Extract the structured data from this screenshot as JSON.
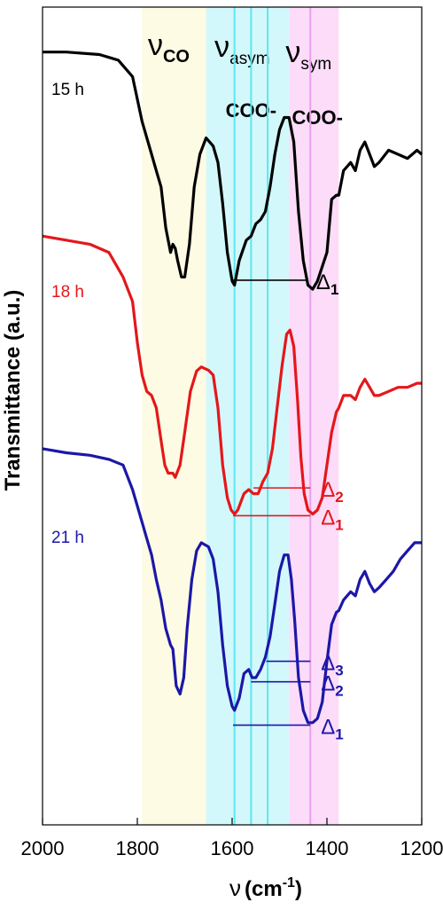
{
  "chart_data": {
    "type": "line",
    "xlabel_symbol": "ν",
    "xlabel_unit_open": "(cm",
    "xlabel_unit_exp": "-1",
    "xlabel_unit_close": ")",
    "ylabel": "Transmittance (a.u.)",
    "xlim": [
      2000,
      1200
    ],
    "x_reversed": true,
    "xticks": [
      "2000",
      "1800",
      "1600",
      "1400",
      "1200"
    ],
    "grid": false,
    "bands": [
      {
        "symbol": "ν",
        "sub": "CO",
        "second_line": "",
        "x_range": [
          1790,
          1655
        ],
        "color": "#fdfbe3"
      },
      {
        "symbol": "ν",
        "sub": "asym",
        "second_line": "COO-",
        "x_range": [
          1655,
          1480
        ],
        "color": "#d3f8fb"
      },
      {
        "symbol": "ν",
        "sub": "sym",
        "second_line": "COO-",
        "x_range": [
          1480,
          1375
        ],
        "color": "#fcdcf9"
      }
    ],
    "marker_lines": [
      {
        "x": 1595,
        "color": "#5ee6f0"
      },
      {
        "x": 1560,
        "color": "#5ee6f0"
      },
      {
        "x": 1525,
        "color": "#5ee6f0"
      },
      {
        "x": 1435,
        "color": "#e8a0ea"
      }
    ],
    "series": [
      {
        "name": "15 h",
        "color": "#000000",
        "points": [
          [
            2000,
            0.945
          ],
          [
            1950,
            0.945
          ],
          [
            1880,
            0.942
          ],
          [
            1840,
            0.935
          ],
          [
            1810,
            0.915
          ],
          [
            1790,
            0.86
          ],
          [
            1770,
            0.82
          ],
          [
            1760,
            0.8
          ],
          [
            1750,
            0.78
          ],
          [
            1740,
            0.73
          ],
          [
            1730,
            0.7
          ],
          [
            1725,
            0.71
          ],
          [
            1720,
            0.705
          ],
          [
            1715,
            0.69
          ],
          [
            1707,
            0.67
          ],
          [
            1700,
            0.67
          ],
          [
            1690,
            0.71
          ],
          [
            1680,
            0.78
          ],
          [
            1668,
            0.82
          ],
          [
            1655,
            0.84
          ],
          [
            1640,
            0.83
          ],
          [
            1630,
            0.81
          ],
          [
            1620,
            0.76
          ],
          [
            1610,
            0.7
          ],
          [
            1600,
            0.665
          ],
          [
            1595,
            0.66
          ],
          [
            1585,
            0.69
          ],
          [
            1570,
            0.715
          ],
          [
            1560,
            0.72
          ],
          [
            1550,
            0.735
          ],
          [
            1540,
            0.74
          ],
          [
            1530,
            0.75
          ],
          [
            1520,
            0.78
          ],
          [
            1510,
            0.82
          ],
          [
            1500,
            0.85
          ],
          [
            1490,
            0.865
          ],
          [
            1480,
            0.865
          ],
          [
            1470,
            0.835
          ],
          [
            1460,
            0.75
          ],
          [
            1450,
            0.69
          ],
          [
            1440,
            0.66
          ],
          [
            1430,
            0.655
          ],
          [
            1420,
            0.665
          ],
          [
            1400,
            0.7
          ],
          [
            1390,
            0.765
          ],
          [
            1380,
            0.77
          ],
          [
            1375,
            0.77
          ],
          [
            1365,
            0.8
          ],
          [
            1350,
            0.81
          ],
          [
            1340,
            0.8
          ],
          [
            1330,
            0.825
          ],
          [
            1320,
            0.835
          ],
          [
            1310,
            0.82
          ],
          [
            1300,
            0.805
          ],
          [
            1290,
            0.81
          ],
          [
            1270,
            0.825
          ],
          [
            1250,
            0.82
          ],
          [
            1230,
            0.815
          ],
          [
            1210,
            0.825
          ],
          [
            1200,
            0.82
          ]
        ]
      },
      {
        "name": "18 h",
        "color": "#e4171b",
        "points": [
          [
            2000,
            0.72
          ],
          [
            1950,
            0.715
          ],
          [
            1900,
            0.71
          ],
          [
            1860,
            0.7
          ],
          [
            1830,
            0.67
          ],
          [
            1810,
            0.64
          ],
          [
            1800,
            0.59
          ],
          [
            1790,
            0.55
          ],
          [
            1780,
            0.53
          ],
          [
            1770,
            0.525
          ],
          [
            1760,
            0.51
          ],
          [
            1750,
            0.47
          ],
          [
            1742,
            0.44
          ],
          [
            1735,
            0.43
          ],
          [
            1725,
            0.43
          ],
          [
            1720,
            0.425
          ],
          [
            1710,
            0.44
          ],
          [
            1700,
            0.48
          ],
          [
            1688,
            0.53
          ],
          [
            1675,
            0.555
          ],
          [
            1665,
            0.56
          ],
          [
            1650,
            0.556
          ],
          [
            1640,
            0.55
          ],
          [
            1630,
            0.51
          ],
          [
            1620,
            0.44
          ],
          [
            1610,
            0.4
          ],
          [
            1602,
            0.385
          ],
          [
            1595,
            0.38
          ],
          [
            1588,
            0.385
          ],
          [
            1575,
            0.405
          ],
          [
            1565,
            0.41
          ],
          [
            1555,
            0.405
          ],
          [
            1545,
            0.405
          ],
          [
            1535,
            0.42
          ],
          [
            1525,
            0.43
          ],
          [
            1515,
            0.46
          ],
          [
            1505,
            0.51
          ],
          [
            1495,
            0.56
          ],
          [
            1485,
            0.6
          ],
          [
            1478,
            0.605
          ],
          [
            1470,
            0.585
          ],
          [
            1462,
            0.52
          ],
          [
            1455,
            0.45
          ],
          [
            1448,
            0.405
          ],
          [
            1440,
            0.385
          ],
          [
            1430,
            0.38
          ],
          [
            1420,
            0.385
          ],
          [
            1410,
            0.4
          ],
          [
            1400,
            0.44
          ],
          [
            1390,
            0.48
          ],
          [
            1380,
            0.505
          ],
          [
            1375,
            0.51
          ],
          [
            1365,
            0.525
          ],
          [
            1350,
            0.525
          ],
          [
            1340,
            0.52
          ],
          [
            1330,
            0.535
          ],
          [
            1320,
            0.545
          ],
          [
            1310,
            0.535
          ],
          [
            1300,
            0.525
          ],
          [
            1290,
            0.525
          ],
          [
            1270,
            0.53
          ],
          [
            1250,
            0.535
          ],
          [
            1230,
            0.535
          ],
          [
            1210,
            0.54
          ],
          [
            1200,
            0.54
          ]
        ]
      },
      {
        "name": "21 h",
        "color": "#1c17a7",
        "points": [
          [
            2000,
            0.46
          ],
          [
            1950,
            0.455
          ],
          [
            1900,
            0.452
          ],
          [
            1860,
            0.447
          ],
          [
            1830,
            0.44
          ],
          [
            1810,
            0.41
          ],
          [
            1800,
            0.39
          ],
          [
            1790,
            0.37
          ],
          [
            1780,
            0.35
          ],
          [
            1770,
            0.33
          ],
          [
            1760,
            0.3
          ],
          [
            1750,
            0.275
          ],
          [
            1740,
            0.24
          ],
          [
            1730,
            0.22
          ],
          [
            1725,
            0.215
          ],
          [
            1718,
            0.17
          ],
          [
            1710,
            0.16
          ],
          [
            1702,
            0.18
          ],
          [
            1695,
            0.24
          ],
          [
            1685,
            0.3
          ],
          [
            1675,
            0.335
          ],
          [
            1665,
            0.345
          ],
          [
            1650,
            0.34
          ],
          [
            1640,
            0.325
          ],
          [
            1630,
            0.285
          ],
          [
            1620,
            0.22
          ],
          [
            1610,
            0.17
          ],
          [
            1600,
            0.145
          ],
          [
            1595,
            0.14
          ],
          [
            1585,
            0.155
          ],
          [
            1575,
            0.185
          ],
          [
            1565,
            0.19
          ],
          [
            1558,
            0.18
          ],
          [
            1550,
            0.18
          ],
          [
            1540,
            0.19
          ],
          [
            1530,
            0.205
          ],
          [
            1520,
            0.23
          ],
          [
            1510,
            0.27
          ],
          [
            1500,
            0.31
          ],
          [
            1490,
            0.33
          ],
          [
            1482,
            0.33
          ],
          [
            1475,
            0.3
          ],
          [
            1468,
            0.25
          ],
          [
            1460,
            0.18
          ],
          [
            1450,
            0.14
          ],
          [
            1440,
            0.125
          ],
          [
            1430,
            0.125
          ],
          [
            1420,
            0.13
          ],
          [
            1410,
            0.15
          ],
          [
            1400,
            0.2
          ],
          [
            1390,
            0.245
          ],
          [
            1380,
            0.26
          ],
          [
            1375,
            0.262
          ],
          [
            1365,
            0.275
          ],
          [
            1350,
            0.285
          ],
          [
            1340,
            0.28
          ],
          [
            1330,
            0.3
          ],
          [
            1320,
            0.31
          ],
          [
            1310,
            0.295
          ],
          [
            1300,
            0.285
          ],
          [
            1290,
            0.29
          ],
          [
            1275,
            0.3
          ],
          [
            1260,
            0.31
          ],
          [
            1245,
            0.325
          ],
          [
            1230,
            0.335
          ],
          [
            1215,
            0.345
          ],
          [
            1200,
            0.345
          ]
        ]
      }
    ],
    "deltas": [
      {
        "series": "15 h",
        "sub": "1",
        "x_from": 1598,
        "x_to": 1445,
        "y": 0.666
      },
      {
        "series": "18 h",
        "sub": "2",
        "x_from": 1555,
        "x_to": 1435,
        "y": 0.412
      },
      {
        "series": "18 h",
        "sub": "1",
        "x_from": 1598,
        "x_to": 1435,
        "y": 0.378
      },
      {
        "series": "21 h",
        "sub": "3",
        "x_from": 1528,
        "x_to": 1435,
        "y": 0.2
      },
      {
        "series": "21 h",
        "sub": "2",
        "x_from": 1560,
        "x_to": 1435,
        "y": 0.175
      },
      {
        "series": "21 h",
        "sub": "1",
        "x_from": 1598,
        "x_to": 1435,
        "y": 0.122
      }
    ]
  }
}
